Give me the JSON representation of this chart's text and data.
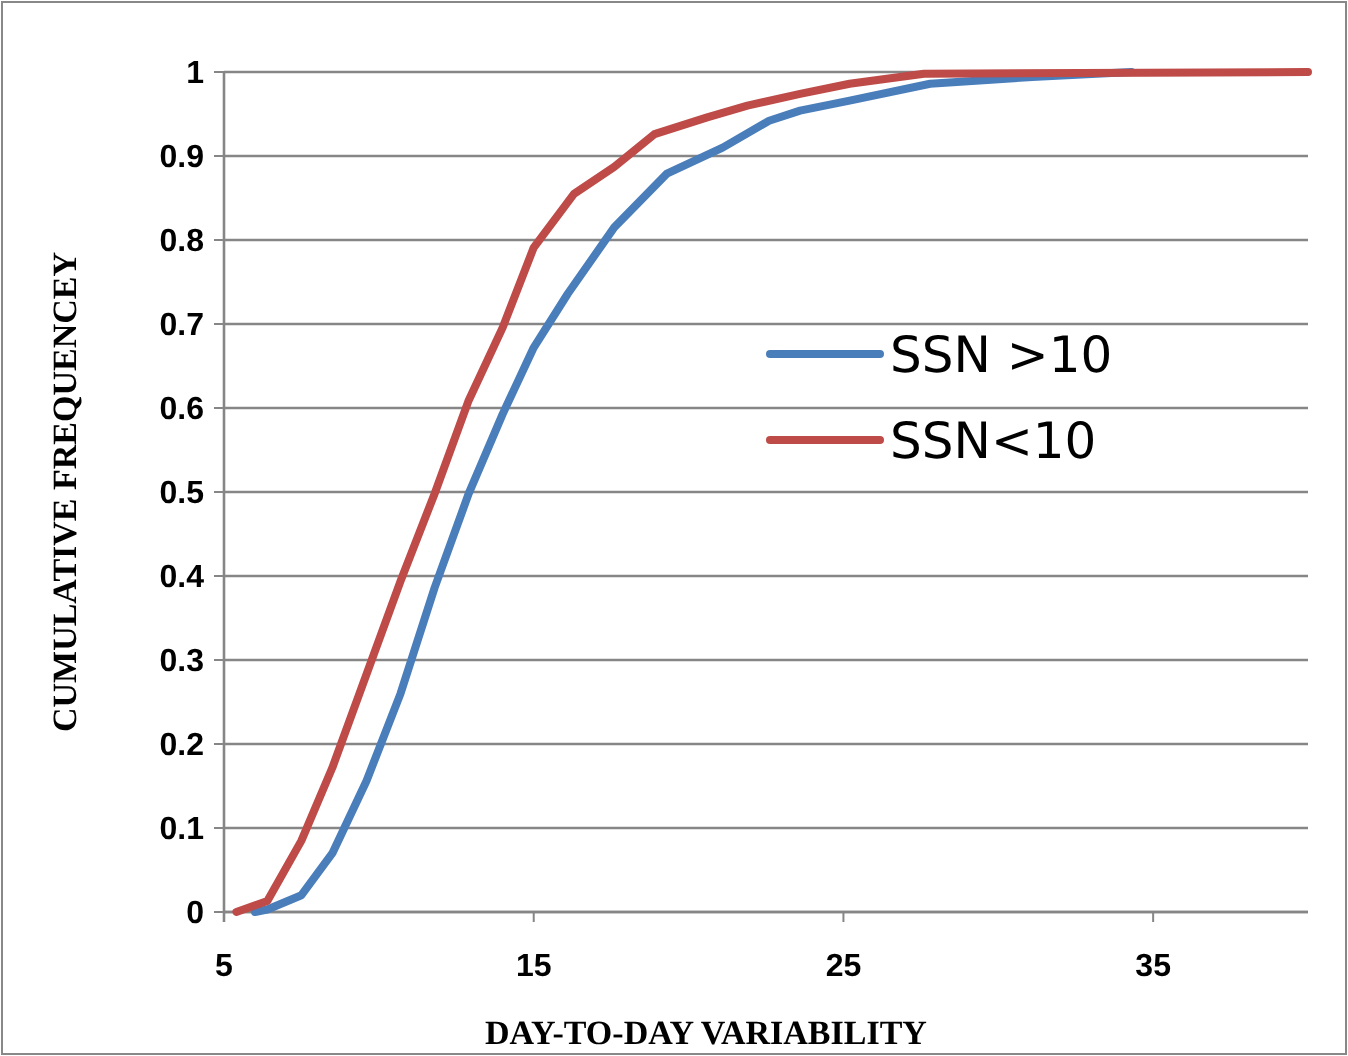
{
  "chart_data": {
    "type": "line",
    "xlabel": "DAY-TO-DAY VARIABILITY",
    "ylabel": "CUMULATIVE FREQUENCEY",
    "xlim": [
      5,
      40
    ],
    "xticks": [
      5,
      15,
      25,
      35
    ],
    "ylim": [
      0,
      1
    ],
    "yticks": [
      0,
      0.1,
      0.2,
      0.3,
      0.4,
      0.5,
      0.6,
      0.7,
      0.8,
      0.9,
      1
    ],
    "grid": "y",
    "legend": "right",
    "marker": "none",
    "line_style": "solid",
    "series": [
      {
        "name": "SSN >10",
        "color": "#4a7ebb",
        "x": [
          6.0,
          6.4,
          7.5,
          8.5,
          9.6,
          10.7,
          11.8,
          12.9,
          14.0,
          15.0,
          16.1,
          17.6,
          19.3,
          21.1,
          22.6,
          23.6,
          25.2,
          27.8,
          31.1,
          34.3
        ],
        "values": [
          0,
          0.003,
          0.02,
          0.07,
          0.156,
          0.26,
          0.386,
          0.498,
          0.593,
          0.672,
          0.736,
          0.815,
          0.879,
          0.91,
          0.942,
          0.954,
          0.966,
          0.986,
          0.994,
          1
        ]
      },
      {
        "name": "SSN<10",
        "color": "#be4b48",
        "x": [
          5.4,
          6.4,
          7.5,
          8.5,
          9.6,
          10.7,
          11.8,
          12.9,
          14.0,
          15.0,
          16.3,
          17.6,
          18.9,
          20.6,
          21.9,
          23.6,
          25.2,
          27.6,
          40
        ],
        "values": [
          0,
          0.013,
          0.085,
          0.172,
          0.283,
          0.394,
          0.498,
          0.609,
          0.696,
          0.791,
          0.855,
          0.887,
          0.926,
          0.946,
          0.96,
          0.974,
          0.986,
          0.998,
          1
        ]
      }
    ]
  }
}
